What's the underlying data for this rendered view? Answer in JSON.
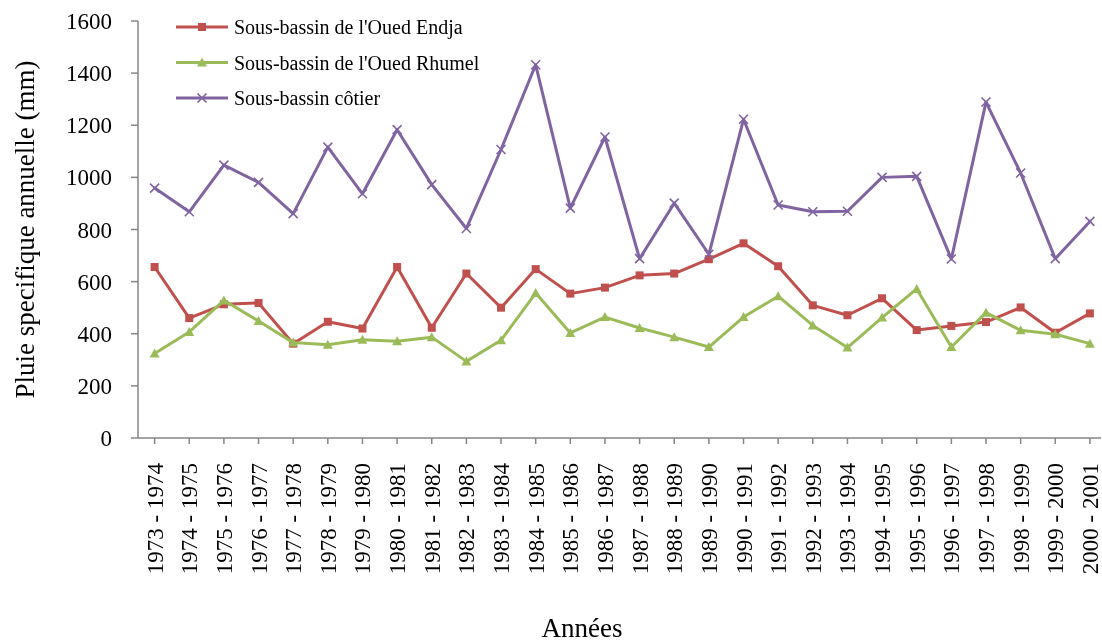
{
  "chart_data": {
    "type": "line",
    "xlabel": "Années",
    "ylabel": "Pluie specifique annuelle (mm)",
    "categories": [
      "1973 - 1974",
      "1974 - 1975",
      "1975 - 1976",
      "1976 - 1977",
      "1977 - 1978",
      "1978 - 1979",
      "1979 - 1980",
      "1980 - 1981",
      "1981 - 1982",
      "1982 - 1983",
      "1983 - 1984",
      "1984 - 1985",
      "1985 - 1986",
      "1986 - 1987",
      "1987 - 1988",
      "1988 - 1989",
      "1989 - 1990",
      "1990 - 1991",
      "1991 - 1992",
      "1992 - 1993",
      "1993 - 1994",
      "1994 - 1995",
      "1995 - 1996",
      "1996 - 1997",
      "1997 - 1998",
      "1998 - 1999",
      "1999 - 2000",
      "2000 - 2001"
    ],
    "series": [
      {
        "name": "Sous-bassin de l'Oued Endja",
        "color": "#c0504d",
        "marker": "square",
        "values": [
          656,
          460,
          513,
          518,
          362,
          446,
          420,
          656,
          423,
          631,
          500,
          648,
          554,
          577,
          624,
          631,
          686,
          747,
          659,
          509,
          471,
          536,
          414,
          430,
          445,
          501,
          404,
          478
        ]
      },
      {
        "name": "Sous-bassin de l'Oued Rhumel",
        "color": "#9bbb59",
        "marker": "triangle",
        "values": [
          324,
          407,
          528,
          449,
          366,
          358,
          377,
          371,
          387,
          294,
          375,
          556,
          403,
          464,
          422,
          387,
          349,
          464,
          544,
          432,
          347,
          462,
          572,
          349,
          481,
          413,
          398,
          362
        ]
      },
      {
        "name": "Sous-bassin côtier",
        "color": "#8064a2",
        "marker": "cross",
        "values": [
          959,
          868,
          1047,
          981,
          861,
          1116,
          937,
          1183,
          972,
          804,
          1107,
          1432,
          882,
          1155,
          688,
          901,
          705,
          1223,
          894,
          868,
          870,
          1000,
          1004,
          687,
          1289,
          1017,
          688,
          831
        ]
      }
    ],
    "ylim": [
      0,
      1600
    ],
    "yticks": [
      0,
      200,
      400,
      600,
      800,
      1000,
      1200,
      1400,
      1600
    ],
    "grid": false,
    "legend": "top left",
    "line_style": "solid"
  }
}
